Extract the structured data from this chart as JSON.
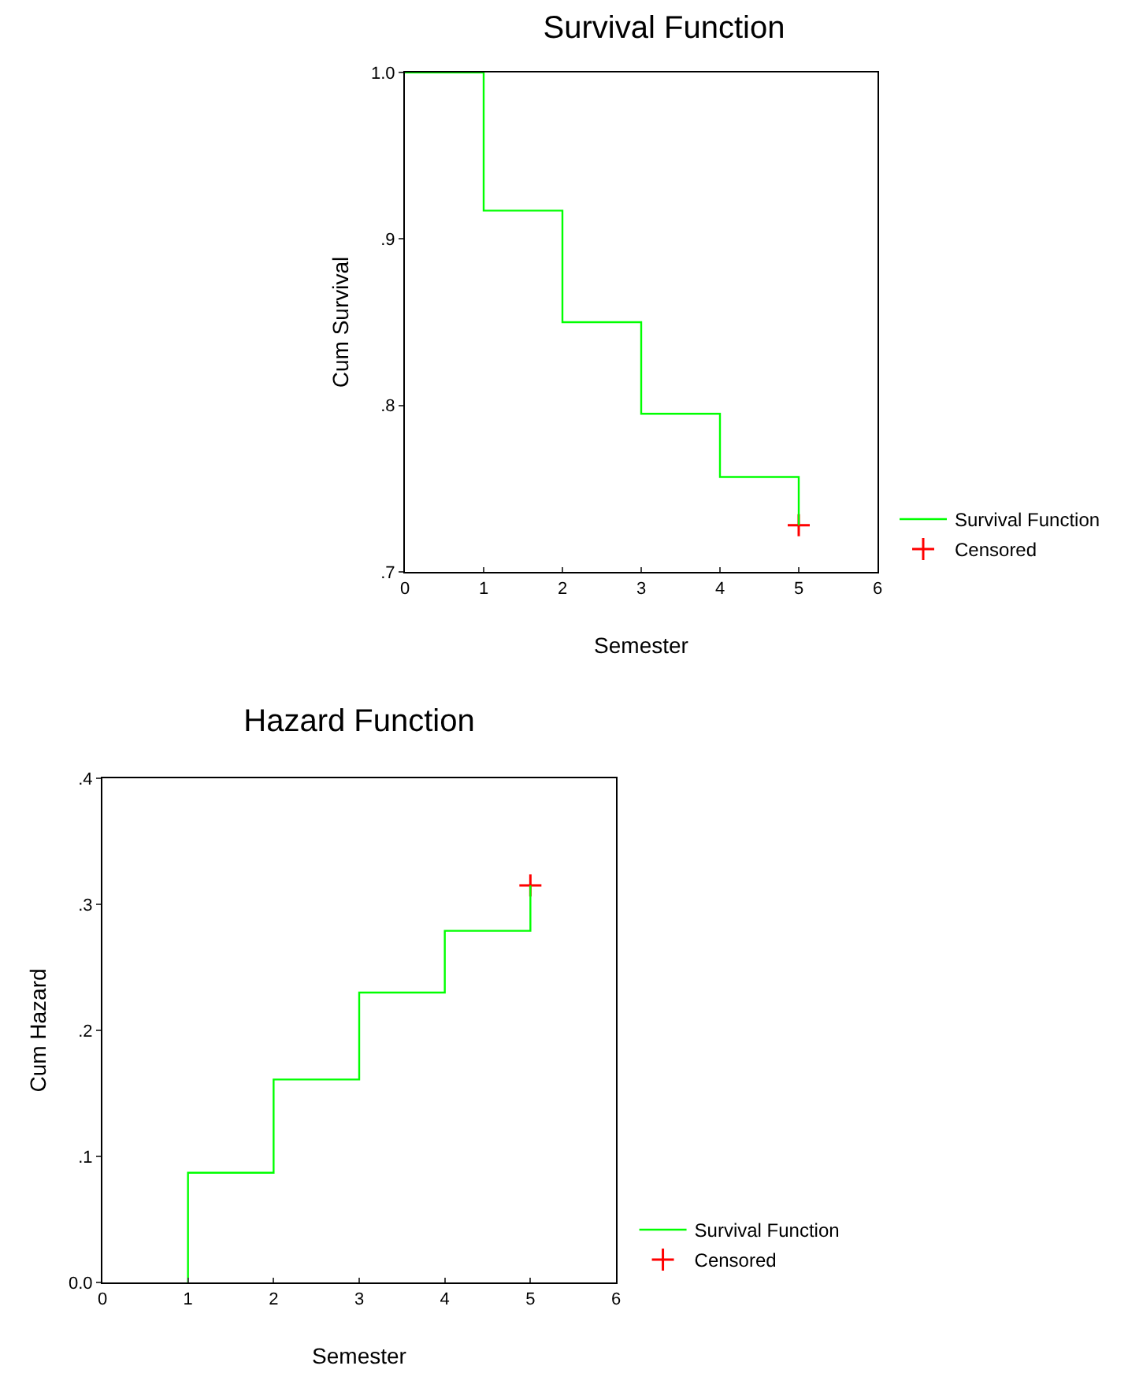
{
  "chart_data": [
    {
      "type": "step",
      "title": "Survival Function",
      "xlabel": "Semester",
      "ylabel": "Cum Survival",
      "xlim": [
        0,
        6
      ],
      "xticks": [
        0,
        1,
        2,
        3,
        4,
        5,
        6
      ],
      "ylim": [
        0.7,
        1.0
      ],
      "yticks": [
        {
          "value": 0.7,
          "label": ".7"
        },
        {
          "value": 0.8,
          "label": ".8"
        },
        {
          "value": 0.9,
          "label": ".9"
        },
        {
          "value": 1.0,
          "label": "1.0"
        }
      ],
      "grid": false,
      "legend": "bottom right",
      "line_style": "solid",
      "series": [
        {
          "name": "Survival Function",
          "color": "#00ff00",
          "x": [
            0,
            1,
            2,
            3,
            4,
            5
          ],
          "values": [
            1.0,
            0.917,
            0.85,
            0.795,
            0.757,
            0.728
          ]
        },
        {
          "name": "Censored",
          "type": "scatter",
          "marker": "cross",
          "color": "#ff0000",
          "x": [
            5
          ],
          "values": [
            0.728
          ]
        }
      ]
    },
    {
      "type": "step",
      "title": "Hazard Function",
      "xlabel": "Semester",
      "ylabel": "Cum Hazard",
      "xlim": [
        0,
        6
      ],
      "xticks": [
        0,
        1,
        2,
        3,
        4,
        5,
        6
      ],
      "ylim": [
        0,
        0.4
      ],
      "yticks": [
        {
          "value": 0,
          "label": "0.0"
        },
        {
          "value": 0.1,
          "label": ".1"
        },
        {
          "value": 0.2,
          "label": ".2"
        },
        {
          "value": 0.3,
          "label": ".3"
        },
        {
          "value": 0.4,
          "label": ".4"
        }
      ],
      "grid": false,
      "legend": "bottom right",
      "line_style": "solid",
      "series": [
        {
          "name": "Survival Function",
          "color": "#00ff00",
          "x": [
            1,
            1,
            2,
            3,
            4,
            5
          ],
          "values": [
            0,
            0.087,
            0.161,
            0.23,
            0.279,
            0.315
          ]
        },
        {
          "name": "Censored",
          "type": "scatter",
          "marker": "cross",
          "color": "#ff0000",
          "x": [
            5
          ],
          "values": [
            0.315
          ]
        }
      ]
    }
  ]
}
